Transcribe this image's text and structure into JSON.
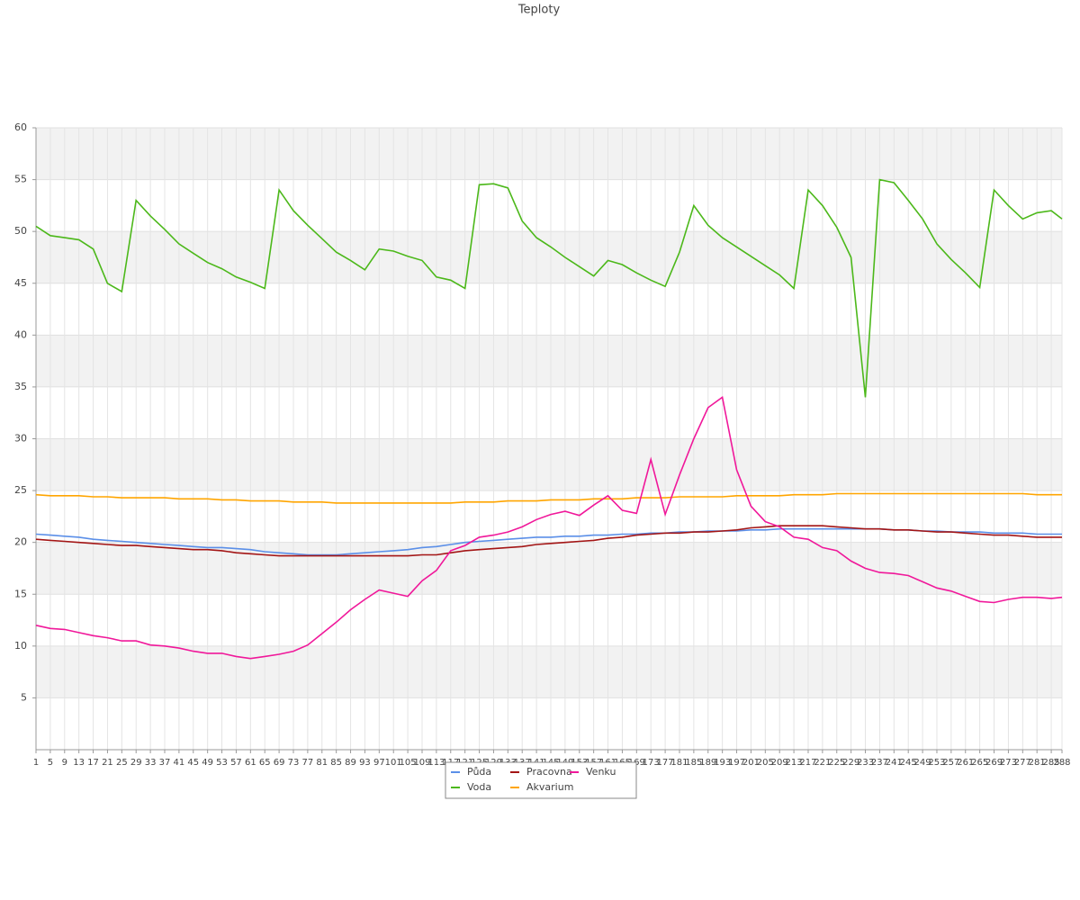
{
  "chart_data": {
    "type": "line",
    "title": "Teploty",
    "x": [
      1,
      5,
      9,
      13,
      17,
      21,
      25,
      29,
      33,
      37,
      41,
      45,
      49,
      53,
      57,
      61,
      65,
      69,
      73,
      77,
      81,
      85,
      89,
      93,
      97,
      101,
      105,
      109,
      113,
      117,
      121,
      125,
      129,
      133,
      137,
      141,
      145,
      149,
      153,
      157,
      161,
      165,
      169,
      173,
      177,
      181,
      185,
      189,
      193,
      197,
      201,
      205,
      209,
      213,
      217,
      221,
      225,
      229,
      233,
      237,
      241,
      245,
      249,
      253,
      257,
      261,
      265,
      269,
      273,
      277,
      281,
      285,
      288
    ],
    "xlim": [
      1,
      288
    ],
    "xticks": [
      1,
      5,
      9,
      13,
      17,
      21,
      25,
      29,
      33,
      37,
      41,
      45,
      49,
      53,
      57,
      61,
      65,
      69,
      73,
      77,
      81,
      85,
      89,
      93,
      97,
      101,
      105,
      109,
      113,
      117,
      121,
      125,
      129,
      133,
      137,
      141,
      145,
      149,
      153,
      157,
      161,
      165,
      169,
      173,
      177,
      181,
      185,
      189,
      193,
      197,
      201,
      205,
      209,
      213,
      217,
      221,
      225,
      229,
      233,
      237,
      241,
      245,
      249,
      253,
      257,
      261,
      265,
      269,
      273,
      277,
      281,
      285,
      288
    ],
    "ylim": [
      0,
      60
    ],
    "yticks": [
      5,
      10,
      15,
      20,
      25,
      30,
      35,
      40,
      45,
      50,
      55,
      60
    ],
    "grid": true,
    "bands": true,
    "legend": "bottom",
    "series": [
      {
        "name": "Půda",
        "color": "#5b8fe8",
        "values": [
          20.8,
          20.7,
          20.6,
          20.5,
          20.3,
          20.2,
          20.1,
          20,
          19.9,
          19.8,
          19.7,
          19.6,
          19.5,
          19.5,
          19.4,
          19.3,
          19.1,
          19,
          18.9,
          18.8,
          18.8,
          18.8,
          18.9,
          19,
          19.1,
          19.2,
          19.3,
          19.5,
          19.6,
          19.8,
          20,
          20.1,
          20.2,
          20.3,
          20.4,
          20.5,
          20.5,
          20.6,
          20.6,
          20.7,
          20.7,
          20.8,
          20.8,
          20.9,
          20.9,
          21,
          21,
          21.1,
          21.1,
          21.1,
          21.2,
          21.2,
          21.3,
          21.3,
          21.3,
          21.3,
          21.3,
          21.3,
          21.3,
          21.3,
          21.2,
          21.2,
          21.1,
          21.1,
          21,
          21,
          21,
          20.9,
          20.9,
          20.9,
          20.8,
          20.8,
          20.8
        ]
      },
      {
        "name": "Voda",
        "color": "#4cb81a",
        "values": [
          50.5,
          49.6,
          49.4,
          49.2,
          48.3,
          45,
          44.2,
          53,
          51.5,
          50.2,
          48.8,
          47.9,
          47,
          46.4,
          45.6,
          45.1,
          44.5,
          54,
          52,
          50.6,
          49.3,
          48,
          47.2,
          46.3,
          48.3,
          48.1,
          47.6,
          47.2,
          45.6,
          45.3,
          44.5,
          54.5,
          54.6,
          54.2,
          51,
          49.4,
          48.5,
          47.5,
          46.6,
          45.7,
          47.2,
          46.8,
          46,
          45.3,
          44.7,
          48,
          52.5,
          50.6,
          49.4,
          48.5,
          47.6,
          46.7,
          45.8,
          44.5,
          54,
          52.5,
          50.4,
          47.5,
          34,
          55,
          54.7,
          53,
          51.2,
          48.8,
          47.3,
          46,
          44.6,
          54,
          52.5,
          51.2,
          51.8,
          52,
          51.2
        ]
      },
      {
        "name": "Pracovna",
        "color": "#a31515",
        "values": [
          20.3,
          20.2,
          20.1,
          20,
          19.9,
          19.8,
          19.7,
          19.7,
          19.6,
          19.5,
          19.4,
          19.3,
          19.3,
          19.2,
          19,
          18.9,
          18.8,
          18.7,
          18.7,
          18.7,
          18.7,
          18.7,
          18.7,
          18.7,
          18.7,
          18.7,
          18.7,
          18.8,
          18.8,
          19,
          19.2,
          19.3,
          19.4,
          19.5,
          19.6,
          19.8,
          19.9,
          20,
          20.1,
          20.2,
          20.4,
          20.5,
          20.7,
          20.8,
          20.9,
          20.9,
          21,
          21,
          21.1,
          21.2,
          21.4,
          21.5,
          21.6,
          21.6,
          21.6,
          21.6,
          21.5,
          21.4,
          21.3,
          21.3,
          21.2,
          21.2,
          21.1,
          21,
          21,
          20.9,
          20.8,
          20.7,
          20.7,
          20.6,
          20.5,
          20.5,
          20.5
        ]
      },
      {
        "name": "Akvarium",
        "color": "#ffa500",
        "values": [
          24.6,
          24.5,
          24.5,
          24.5,
          24.4,
          24.4,
          24.3,
          24.3,
          24.3,
          24.3,
          24.2,
          24.2,
          24.2,
          24.1,
          24.1,
          24,
          24,
          24,
          23.9,
          23.9,
          23.9,
          23.8,
          23.8,
          23.8,
          23.8,
          23.8,
          23.8,
          23.8,
          23.8,
          23.8,
          23.9,
          23.9,
          23.9,
          24,
          24,
          24,
          24.1,
          24.1,
          24.1,
          24.2,
          24.2,
          24.2,
          24.3,
          24.3,
          24.3,
          24.4,
          24.4,
          24.4,
          24.4,
          24.5,
          24.5,
          24.5,
          24.5,
          24.6,
          24.6,
          24.6,
          24.7,
          24.7,
          24.7,
          24.7,
          24.7,
          24.7,
          24.7,
          24.7,
          24.7,
          24.7,
          24.7,
          24.7,
          24.7,
          24.7,
          24.6,
          24.6,
          24.6
        ]
      },
      {
        "name": "Venku",
        "color": "#f0189a",
        "values": [
          12,
          11.7,
          11.6,
          11.3,
          11,
          10.8,
          10.5,
          10.5,
          10.1,
          10,
          9.8,
          9.5,
          9.3,
          9.3,
          9,
          8.8,
          9,
          9.2,
          9.5,
          10.1,
          11.2,
          12.3,
          13.5,
          14.5,
          15.4,
          15.1,
          14.8,
          16.3,
          17.3,
          19.2,
          19.7,
          20.5,
          20.7,
          21,
          21.5,
          22.2,
          22.7,
          23,
          22.6,
          23.6,
          24.5,
          23.1,
          22.8,
          28,
          22.7,
          26.5,
          30,
          33,
          34,
          27,
          23.5,
          22,
          21.5,
          20.5,
          20.3,
          19.5,
          19.2,
          18.2,
          17.5,
          17.1,
          17,
          16.8,
          16.2,
          15.6,
          15.3,
          14.8,
          14.3,
          14.2,
          14.5,
          14.7,
          14.7,
          14.6,
          14.7
        ]
      }
    ]
  }
}
